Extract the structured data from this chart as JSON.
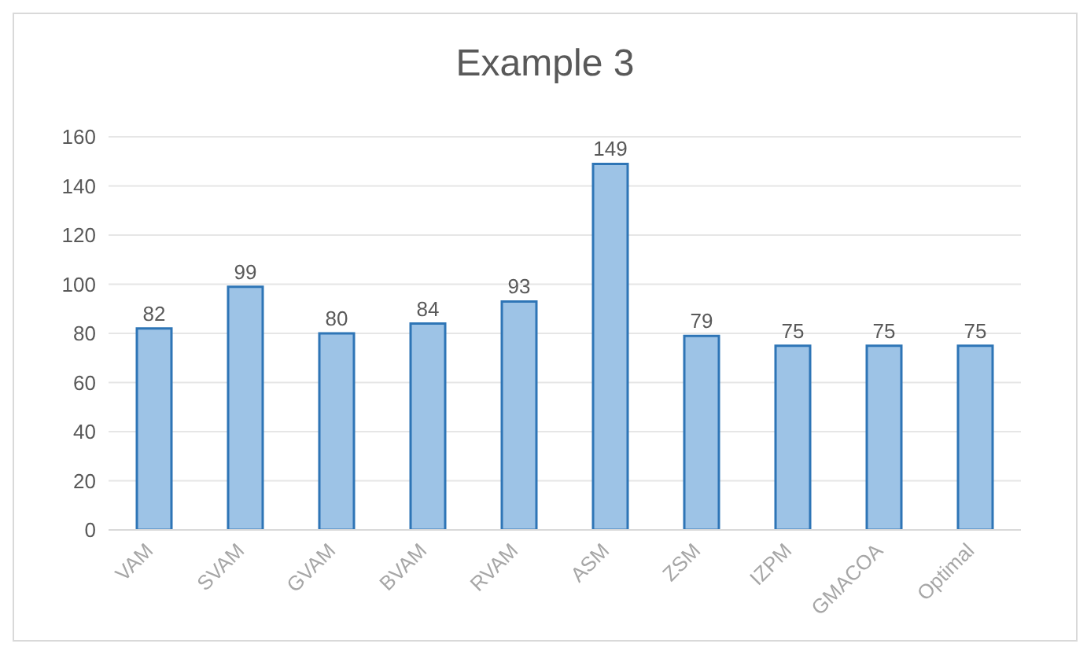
{
  "chart_data": {
    "type": "bar",
    "title": "Example 3",
    "categories": [
      "VAM",
      "SVAM",
      "GVAM",
      "BVAM",
      "RVAM",
      "ASM",
      "ZSM",
      "IZPM",
      "GMACOA",
      "Optimal"
    ],
    "values": [
      82,
      99,
      80,
      84,
      93,
      149,
      79,
      75,
      75,
      75
    ],
    "color": "#9dc3e6",
    "ylim": [
      0,
      160
    ],
    "yticks": [
      0,
      20,
      40,
      60,
      80,
      100,
      120,
      140,
      160
    ],
    "grid": "y",
    "data_labels": true
  }
}
